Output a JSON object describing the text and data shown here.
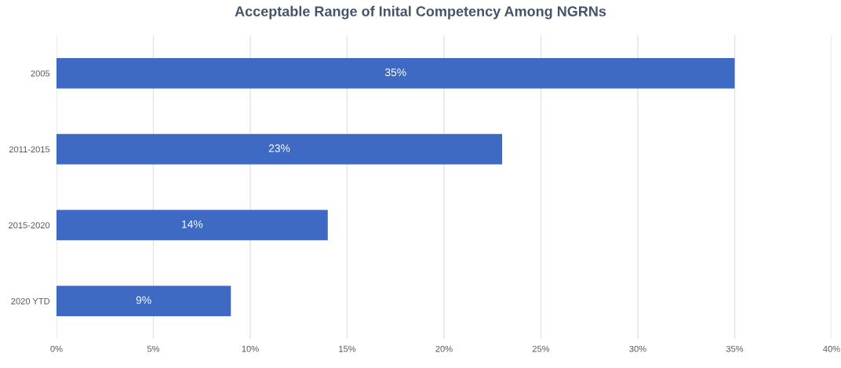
{
  "chart_data": {
    "type": "bar",
    "orientation": "horizontal",
    "title": "Acceptable Range of Inital Competency Among NGRNs",
    "categories": [
      "2005",
      "2011-2015",
      "2015-2020",
      "2020 YTD"
    ],
    "values": [
      35,
      23,
      14,
      9
    ],
    "value_labels": [
      "35%",
      "23%",
      "14%",
      "9%"
    ],
    "color": "#3e6ac4",
    "xlim": [
      0,
      40
    ],
    "xticks": [
      {
        "value": 0,
        "label": "0%"
      },
      {
        "value": 5,
        "label": "5%"
      },
      {
        "value": 10,
        "label": "10%"
      },
      {
        "value": 15,
        "label": "15%"
      },
      {
        "value": 20,
        "label": "20%"
      },
      {
        "value": 25,
        "label": "25%"
      },
      {
        "value": 30,
        "label": "30%"
      },
      {
        "value": 35,
        "label": "35%"
      },
      {
        "value": 40,
        "label": "40%"
      }
    ],
    "grid": "x"
  }
}
